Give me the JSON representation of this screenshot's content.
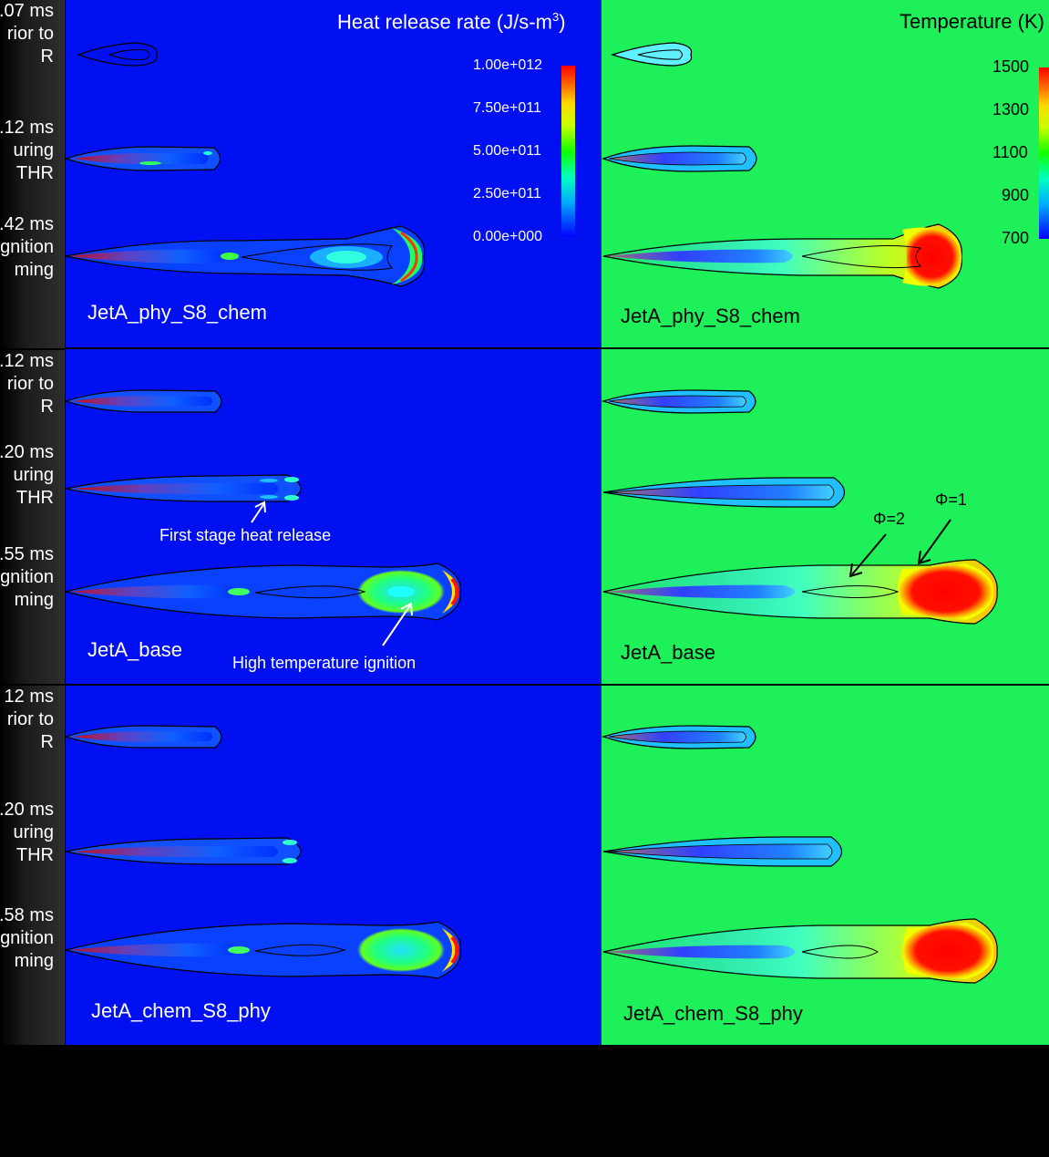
{
  "time_labels": [
    ".07 ms\nrior to\nR",
    ".12 ms\nuring\nTHR",
    ".42 ms\ngnition\nming",
    ".12 ms\nrior to\nR",
    ".20 ms\nuring\nTHR",
    ".55 ms\ngnition\nming",
    "12 ms\nrior to\nR",
    ".20 ms\nuring\nTHR",
    ".58 ms\ngnition\nming"
  ],
  "left_panel": {
    "title": "Heat release rate (J/s-m",
    "title_sup": "3",
    "title_end": ")",
    "colorbar_ticks": [
      "1.00e+012",
      "7.50e+011",
      "5.00e+011",
      "2.50e+011",
      "0.00e+000"
    ],
    "colors": {
      "background": "#0010f0"
    }
  },
  "right_panel": {
    "title": "Temperature (K)",
    "colorbar_ticks": [
      "1500",
      "1300",
      "1100",
      "900",
      "700"
    ],
    "colors": {
      "background": "#1ef05a"
    }
  },
  "cases": [
    "JetA_phy_S8_chem",
    "JetA_base",
    "JetA_chem_S8_phy"
  ],
  "annotations": {
    "first_stage": "First stage heat release",
    "high_temp": "High temperature ignition",
    "phi2": "Φ=2",
    "phi1": "Φ=1"
  }
}
